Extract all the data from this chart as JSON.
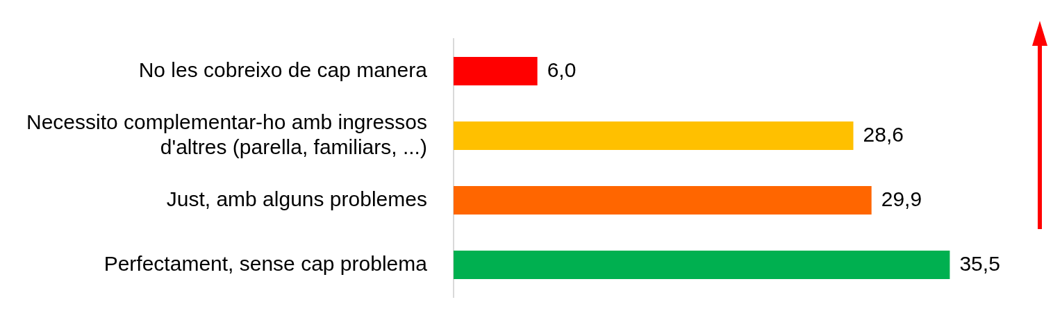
{
  "chart_data": {
    "type": "bar",
    "orientation": "horizontal",
    "categories": [
      "No les cobreixo de cap manera",
      "Necessito complementar-ho amb ingressos d'altres (parella, familiars, ...)",
      "Just, amb alguns problemes",
      "Perfectament, sense cap problema"
    ],
    "values": [
      6.0,
      28.6,
      29.9,
      35.5
    ],
    "colors": [
      "#ff0000",
      "#ffc000",
      "#ff6600",
      "#00b050"
    ],
    "value_labels": [
      "6,0",
      "28,6",
      "29,9",
      "35,5"
    ]
  }
}
